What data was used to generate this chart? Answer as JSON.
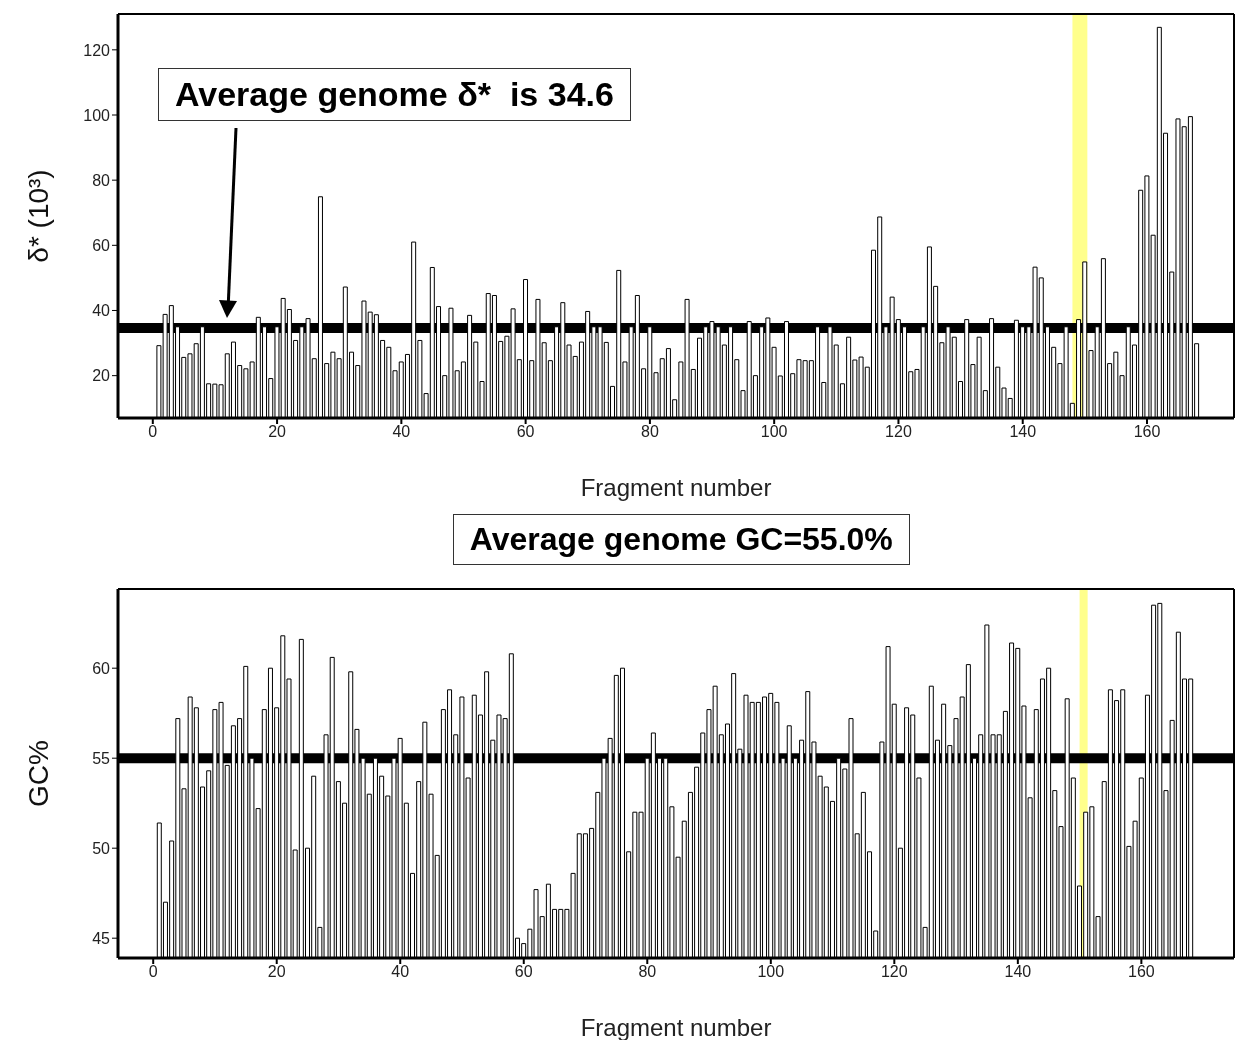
{
  "chart_data": [
    {
      "type": "bar",
      "ylabel": "δ* (10³)",
      "xlabel": "Fragment number",
      "color": "#000000",
      "xlim": [
        -5.6,
        174
      ],
      "xticks": [
        0,
        20,
        40,
        60,
        80,
        100,
        120,
        140,
        160
      ],
      "ylim": [
        7,
        131
      ],
      "yticks": [
        20,
        40,
        60,
        80,
        100,
        120
      ],
      "x": [
        1,
        2,
        3,
        4,
        5,
        6,
        7,
        8,
        9,
        10,
        11,
        12,
        13,
        14,
        15,
        16,
        17,
        18,
        19,
        20,
        21,
        22,
        23,
        24,
        25,
        26,
        27,
        28,
        29,
        30,
        31,
        32,
        33,
        34,
        35,
        36,
        37,
        38,
        39,
        40,
        41,
        42,
        43,
        44,
        45,
        46,
        47,
        48,
        49,
        50,
        51,
        52,
        53,
        54,
        55,
        56,
        57,
        58,
        59,
        60,
        61,
        62,
        63,
        64,
        65,
        66,
        67,
        68,
        69,
        70,
        71,
        72,
        73,
        74,
        75,
        76,
        77,
        78,
        79,
        80,
        81,
        82,
        83,
        84,
        85,
        86,
        87,
        88,
        89,
        90,
        91,
        92,
        93,
        94,
        95,
        96,
        97,
        98,
        99,
        100,
        101,
        102,
        103,
        104,
        105,
        106,
        107,
        108,
        109,
        110,
        111,
        112,
        113,
        114,
        115,
        116,
        117,
        118,
        119,
        120,
        121,
        122,
        123,
        124,
        125,
        126,
        127,
        128,
        129,
        130,
        131,
        132,
        133,
        134,
        135,
        136,
        137,
        138,
        139,
        140,
        141,
        142,
        143,
        144,
        145,
        146,
        147,
        148,
        149,
        150,
        151,
        152,
        153,
        154,
        155,
        156,
        157,
        158,
        159,
        160,
        161,
        162,
        163,
        164,
        165,
        166,
        167,
        168
      ],
      "values": [
        29.2,
        38.8,
        41.5,
        35,
        25.6,
        26.7,
        29.8,
        35,
        17.5,
        17.4,
        17.2,
        26.7,
        30.3,
        23.1,
        22.1,
        24.2,
        37.9,
        35,
        19.1,
        35,
        43.7,
        40.3,
        30.8,
        35,
        37.5,
        25.2,
        74.9,
        23.7,
        27.2,
        25.2,
        47.2,
        27.2,
        23.1,
        42.9,
        39.5,
        38.7,
        30.8,
        28.7,
        21.5,
        24.2,
        26.5,
        61,
        30.8,
        14.5,
        53.2,
        41.2,
        20,
        40.7,
        21.5,
        24.2,
        38.5,
        30.3,
        18.2,
        45.2,
        44.6,
        30.5,
        32.1,
        40.5,
        24.9,
        49.5,
        24.6,
        43.4,
        30.1,
        24.6,
        35,
        42.4,
        29.4,
        25.9,
        30.3,
        39.7,
        35,
        35,
        30.2,
        16.7,
        52.3,
        24.2,
        35,
        44.6,
        22.1,
        35,
        20.9,
        25.2,
        28.3,
        12.6,
        24.2,
        43.4,
        21.9,
        31.5,
        35,
        36.6,
        35,
        29.4,
        35,
        24.9,
        15.4,
        36.6,
        20,
        35,
        37.7,
        28.7,
        19.9,
        36.6,
        20.6,
        24.9,
        24.6,
        24.6,
        35,
        17.9,
        35,
        29.4,
        17.5,
        31.8,
        24.8,
        25.7,
        22.6,
        58.5,
        68.7,
        35,
        44.1,
        37.2,
        35,
        21.2,
        21.9,
        35,
        59.5,
        47.4,
        30.1,
        35,
        31.8,
        18.2,
        37.2,
        23.4,
        31.8,
        15.4,
        37.5,
        22.6,
        16.2,
        13,
        37,
        35,
        35,
        53.3,
        50,
        35,
        28.7,
        23.7,
        35,
        11.5,
        37.2,
        54.9,
        27.7,
        35,
        55.9,
        23.7,
        27.2,
        20,
        35,
        29.4,
        76.9,
        81.3,
        63.1,
        126.9,
        94.4,
        51.8,
        98.8,
        96.4,
        99.5,
        29.8
      ],
      "ref_lines": [
        {
          "axis": "y",
          "value": 34.6,
          "label": "Average genome δ*  is 34.6",
          "color": "#000000"
        }
      ],
      "bands": [
        {
          "axis": "x",
          "from": 148,
          "to": 150.4,
          "color": "#ffff66"
        }
      ]
    },
    {
      "type": "bar",
      "ylabel": "GC%",
      "xlabel": "Fragment number",
      "color": "#000000",
      "xlim": [
        -5.7,
        175
      ],
      "xticks": [
        0,
        20,
        40,
        60,
        80,
        100,
        120,
        140,
        160
      ],
      "ylim": [
        43.9,
        64.4
      ],
      "yticks": [
        45,
        50,
        55,
        60
      ],
      "x": [
        1,
        2,
        3,
        4,
        5,
        6,
        7,
        8,
        9,
        10,
        11,
        12,
        13,
        14,
        15,
        16,
        17,
        18,
        19,
        20,
        21,
        22,
        23,
        24,
        25,
        26,
        27,
        28,
        29,
        30,
        31,
        32,
        33,
        34,
        35,
        36,
        37,
        38,
        39,
        40,
        41,
        42,
        43,
        44,
        45,
        46,
        47,
        48,
        49,
        50,
        51,
        52,
        53,
        54,
        55,
        56,
        57,
        58,
        59,
        60,
        61,
        62,
        63,
        64,
        65,
        66,
        67,
        68,
        69,
        70,
        71,
        72,
        73,
        74,
        75,
        76,
        77,
        78,
        79,
        80,
        81,
        82,
        83,
        84,
        85,
        86,
        87,
        88,
        89,
        90,
        91,
        92,
        93,
        94,
        95,
        96,
        97,
        98,
        99,
        100,
        101,
        102,
        103,
        104,
        105,
        106,
        107,
        108,
        109,
        110,
        111,
        112,
        113,
        114,
        115,
        116,
        117,
        118,
        119,
        120,
        121,
        122,
        123,
        124,
        125,
        126,
        127,
        128,
        129,
        130,
        131,
        132,
        133,
        134,
        135,
        136,
        137,
        138,
        139,
        140,
        141,
        142,
        143,
        144,
        145,
        146,
        147,
        148,
        149,
        150,
        151,
        152,
        153,
        154,
        155,
        156,
        157,
        158,
        159,
        160,
        161,
        162,
        163,
        164,
        165,
        166,
        167,
        168
      ],
      "values": [
        51.4,
        47,
        50.4,
        57.2,
        53.3,
        58.4,
        57.8,
        53.4,
        54.3,
        57.7,
        58.1,
        54.6,
        56.8,
        57.2,
        60.1,
        55,
        52.2,
        57.7,
        60,
        57.8,
        61.8,
        59.4,
        49.9,
        61.6,
        50,
        54,
        45.6,
        56.3,
        60.6,
        53.7,
        52.5,
        59.8,
        56.6,
        55,
        53,
        55,
        54,
        52.9,
        55,
        56.1,
        52.5,
        48.6,
        53.7,
        57,
        53,
        49.6,
        57.7,
        58.8,
        56.3,
        58.4,
        53.9,
        58.5,
        57.4,
        59.8,
        56,
        57.4,
        57.2,
        60.8,
        45,
        44.7,
        45.5,
        47.7,
        46.2,
        48,
        46.6,
        46.6,
        46.6,
        48.6,
        50.8,
        50.8,
        51.1,
        53.1,
        55,
        56.1,
        59.6,
        60,
        49.8,
        52,
        52,
        55,
        56.4,
        55,
        55,
        52.3,
        49.5,
        51.5,
        53.1,
        54.5,
        56.4,
        57.7,
        59,
        56.3,
        56.9,
        59.7,
        55.5,
        58.5,
        58.1,
        58.1,
        58.4,
        58.6,
        58.1,
        55,
        56.8,
        55,
        56,
        58.7,
        55.9,
        54,
        53.4,
        52.6,
        55,
        54.4,
        57.2,
        50.8,
        53.1,
        49.8,
        45.4,
        55.9,
        61.2,
        58,
        50,
        57.8,
        57.4,
        53.9,
        45.6,
        59,
        56,
        58,
        55.7,
        57.2,
        58.4,
        60.2,
        55,
        56.3,
        62.4,
        56.3,
        56.3,
        57.6,
        61.4,
        61.1,
        57.9,
        52.8,
        57.7,
        59.4,
        60,
        53.2,
        51.2,
        58.3,
        53.9,
        47.9,
        52,
        52.3,
        46.2,
        53.7,
        58.8,
        58.2,
        58.8,
        50.1,
        51.5,
        53.9,
        58.5,
        63.5,
        63.6,
        53.2,
        57.1,
        62,
        59.4,
        59.4
      ],
      "ref_lines": [
        {
          "axis": "y",
          "value": 55.0,
          "label": "Average genome GC=55.0%",
          "color": "#000000"
        }
      ],
      "bands": [
        {
          "axis": "x",
          "from": 150,
          "to": 151.3,
          "color": "#ffff66"
        }
      ]
    }
  ]
}
